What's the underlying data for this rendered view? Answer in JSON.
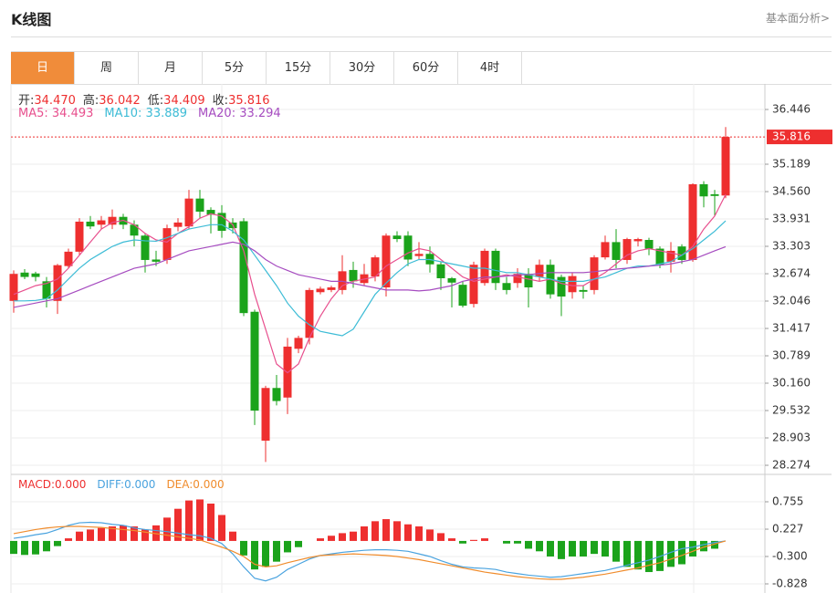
{
  "header": {
    "title": "K线图",
    "link": "基本面分析>"
  },
  "tabs": [
    {
      "label": "日",
      "active": true
    },
    {
      "label": "周",
      "active": false
    },
    {
      "label": "月",
      "active": false
    },
    {
      "label": "5分",
      "active": false
    },
    {
      "label": "15分",
      "active": false
    },
    {
      "label": "30分",
      "active": false
    },
    {
      "label": "60分",
      "active": false
    },
    {
      "label": "4时",
      "active": false
    }
  ],
  "chart_data": [
    {
      "type": "candlestick",
      "info": [
        {
          "name": "开:",
          "value": "34.470"
        },
        {
          "name": "高:",
          "value": "36.042"
        },
        {
          "name": "低:",
          "value": "34.409"
        },
        {
          "name": "收:",
          "value": "35.816"
        }
      ],
      "up_color": "#ee2f2f",
      "down_color": "#1ba31b",
      "open": [
        32.05,
        32.7,
        32.68,
        32.5,
        32.05,
        32.85,
        33.18,
        33.87,
        33.8,
        33.8,
        33.98,
        33.8,
        33.55,
        33.0,
        32.99,
        33.75,
        33.76,
        34.4,
        34.14,
        34.07,
        33.85,
        33.88,
        31.8,
        28.84,
        30.05,
        29.83,
        30.95,
        31.2,
        32.25,
        32.3,
        32.3,
        32.76,
        32.46,
        32.61,
        32.36,
        33.55,
        33.55,
        33.08,
        33.13,
        32.89,
        32.57,
        32.42,
        31.98,
        32.46,
        33.2,
        32.46,
        32.46,
        32.67,
        32.6,
        32.88,
        32.6,
        32.25,
        32.3,
        32.3,
        33.05,
        33.4,
        32.99,
        33.42,
        33.45,
        33.25,
        32.95,
        33.3,
        32.99,
        34.73,
        34.5,
        34.47
      ],
      "high": [
        32.75,
        32.78,
        32.72,
        32.6,
        32.9,
        33.25,
        33.95,
        34.0,
        34.0,
        34.15,
        34.05,
        33.9,
        33.6,
        33.2,
        33.8,
        33.95,
        34.6,
        34.6,
        34.2,
        34.25,
        33.95,
        33.95,
        31.85,
        30.1,
        30.35,
        31.2,
        31.25,
        32.35,
        32.38,
        32.4,
        33.1,
        32.95,
        32.9,
        33.1,
        33.6,
        33.65,
        33.65,
        33.4,
        33.3,
        32.95,
        32.6,
        32.5,
        32.95,
        33.25,
        33.25,
        32.6,
        32.8,
        32.8,
        33.0,
        33.0,
        32.65,
        32.7,
        32.4,
        33.1,
        33.55,
        33.7,
        33.5,
        33.5,
        33.5,
        33.3,
        33.4,
        33.35,
        34.75,
        34.8,
        34.6,
        36.042
      ],
      "low": [
        31.78,
        32.55,
        32.5,
        31.9,
        31.75,
        32.8,
        33.1,
        33.7,
        33.7,
        33.7,
        33.7,
        33.3,
        32.7,
        32.85,
        32.9,
        33.65,
        33.7,
        33.95,
        33.6,
        33.5,
        33.6,
        31.7,
        29.2,
        28.35,
        29.65,
        29.45,
        30.85,
        31.05,
        32.2,
        32.25,
        32.2,
        32.35,
        32.4,
        32.5,
        32.15,
        33.4,
        32.85,
        33.0,
        32.7,
        32.3,
        31.9,
        31.9,
        31.9,
        32.4,
        32.3,
        32.2,
        32.35,
        31.9,
        32.5,
        32.1,
        31.7,
        32.1,
        32.1,
        32.2,
        33.0,
        32.8,
        32.9,
        33.3,
        33.1,
        32.8,
        32.7,
        32.9,
        32.95,
        34.2,
        34.0,
        34.409
      ],
      "close": [
        32.67,
        32.6,
        32.6,
        32.1,
        32.87,
        33.18,
        33.87,
        33.76,
        33.9,
        33.98,
        33.8,
        33.55,
        32.99,
        32.95,
        33.72,
        33.85,
        34.4,
        34.1,
        34.03,
        33.66,
        33.72,
        31.77,
        29.53,
        30.05,
        29.75,
        31.0,
        31.2,
        32.3,
        32.33,
        32.36,
        32.73,
        32.5,
        32.66,
        33.05,
        33.55,
        33.47,
        33.0,
        33.13,
        32.89,
        32.57,
        32.47,
        31.94,
        32.88,
        33.2,
        32.46,
        32.3,
        32.67,
        32.36,
        32.88,
        32.2,
        32.15,
        32.62,
        32.26,
        33.05,
        33.4,
        32.99,
        33.47,
        33.47,
        33.25,
        32.88,
        33.2,
        32.99,
        34.73,
        34.45,
        34.46,
        35.816
      ],
      "series": [
        {
          "label": "MA5: 34.493",
          "color": "#e8508e",
          "values": [
            32.2,
            32.3,
            32.4,
            32.45,
            32.55,
            32.8,
            33.1,
            33.4,
            33.7,
            33.85,
            33.9,
            33.8,
            33.6,
            33.45,
            33.4,
            33.6,
            33.75,
            33.95,
            34.05,
            34.0,
            33.8,
            33.2,
            32.2,
            31.4,
            30.6,
            30.4,
            30.6,
            31.2,
            31.7,
            32.1,
            32.4,
            32.5,
            32.55,
            32.6,
            32.85,
            33.0,
            33.15,
            33.25,
            33.2,
            33.0,
            32.8,
            32.6,
            32.5,
            32.55,
            32.6,
            32.65,
            32.6,
            32.55,
            32.5,
            32.55,
            32.45,
            32.4,
            32.4,
            32.55,
            32.7,
            32.9,
            33.1,
            33.2,
            33.25,
            33.2,
            33.15,
            33.1,
            33.3,
            33.7,
            34.0,
            34.493
          ]
        },
        {
          "label": "MA10: 33.889",
          "color": "#3dbcd6",
          "values": [
            32.05,
            32.05,
            32.06,
            32.1,
            32.3,
            32.55,
            32.8,
            33.0,
            33.15,
            33.3,
            33.4,
            33.45,
            33.43,
            33.42,
            33.5,
            33.6,
            33.7,
            33.75,
            33.8,
            33.8,
            33.65,
            33.45,
            33.1,
            32.75,
            32.4,
            32.0,
            31.7,
            31.5,
            31.35,
            31.3,
            31.25,
            31.4,
            31.8,
            32.2,
            32.46,
            32.7,
            32.9,
            33.0,
            33.0,
            32.95,
            32.9,
            32.85,
            32.8,
            32.8,
            32.75,
            32.7,
            32.7,
            32.65,
            32.6,
            32.55,
            32.5,
            32.5,
            32.5,
            32.55,
            32.6,
            32.7,
            32.8,
            32.85,
            32.85,
            32.9,
            32.95,
            33.1,
            33.25,
            33.45,
            33.65,
            33.889
          ]
        },
        {
          "label": "MA20: 33.294",
          "color": "#a64cc0",
          "values": [
            31.9,
            31.95,
            32.0,
            32.05,
            32.1,
            32.2,
            32.3,
            32.4,
            32.5,
            32.6,
            32.7,
            32.8,
            32.85,
            32.9,
            33.0,
            33.1,
            33.2,
            33.25,
            33.3,
            33.35,
            33.4,
            33.35,
            33.2,
            33.0,
            32.85,
            32.75,
            32.65,
            32.6,
            32.55,
            32.5,
            32.5,
            32.45,
            32.4,
            32.35,
            32.3,
            32.3,
            32.3,
            32.28,
            32.3,
            32.35,
            32.4,
            32.5,
            32.55,
            32.6,
            32.6,
            32.62,
            32.65,
            32.65,
            32.68,
            32.7,
            32.7,
            32.7,
            32.7,
            32.72,
            32.75,
            32.78,
            32.8,
            32.82,
            32.85,
            32.87,
            32.9,
            32.95,
            33.0,
            33.1,
            33.2,
            33.294
          ]
        }
      ],
      "last_price": {
        "value": 35.816,
        "color": "#ee2f2f"
      },
      "ylim": [
        28.065,
        37.033
      ],
      "yticks": [
        36.446,
        35.189,
        {
          "value": 34.56,
          "label": "34.560"
        },
        33.931,
        33.303,
        32.674,
        32.046,
        31.417,
        30.789,
        {
          "value": 30.16,
          "label": "30.160"
        },
        29.532,
        28.903,
        28.274
      ],
      "grid": true
    },
    {
      "type": "macd",
      "histogram": {
        "label": "MACD:0.000",
        "color": "#ee2f2f",
        "down_color": "#1ba31b",
        "values": [
          -0.25,
          -0.27,
          -0.26,
          -0.2,
          -0.1,
          0.05,
          0.18,
          0.22,
          0.25,
          0.28,
          0.3,
          0.28,
          0.22,
          0.3,
          0.45,
          0.62,
          0.78,
          0.8,
          0.72,
          0.5,
          0.18,
          -0.28,
          -0.55,
          -0.5,
          -0.4,
          -0.22,
          -0.12,
          0.0,
          0.05,
          0.1,
          0.15,
          0.18,
          0.28,
          0.38,
          0.42,
          0.38,
          0.32,
          0.28,
          0.22,
          0.15,
          0.05,
          -0.05,
          0.02,
          0.05,
          0.0,
          -0.05,
          -0.05,
          -0.15,
          -0.2,
          -0.3,
          -0.35,
          -0.3,
          -0.3,
          -0.25,
          -0.3,
          -0.4,
          -0.5,
          -0.55,
          -0.6,
          -0.58,
          -0.5,
          -0.45,
          -0.3,
          -0.2,
          -0.15,
          0.0
        ]
      },
      "series": [
        {
          "label": "DIFF:0.000",
          "color": "#4aa3df",
          "values": [
            0.05,
            0.08,
            0.12,
            0.15,
            0.22,
            0.3,
            0.35,
            0.36,
            0.35,
            0.32,
            0.3,
            0.25,
            0.22,
            0.2,
            0.18,
            0.15,
            0.12,
            0.1,
            0.05,
            -0.05,
            -0.25,
            -0.5,
            -0.72,
            -0.77,
            -0.7,
            -0.55,
            -0.45,
            -0.35,
            -0.28,
            -0.25,
            -0.22,
            -0.2,
            -0.18,
            -0.17,
            -0.17,
            -0.18,
            -0.2,
            -0.25,
            -0.3,
            -0.38,
            -0.45,
            -0.5,
            -0.52,
            -0.53,
            -0.55,
            -0.6,
            -0.63,
            -0.66,
            -0.68,
            -0.7,
            -0.69,
            -0.66,
            -0.63,
            -0.6,
            -0.57,
            -0.52,
            -0.47,
            -0.42,
            -0.37,
            -0.3,
            -0.22,
            -0.15,
            -0.12,
            -0.07,
            -0.03,
            0.0
          ]
        },
        {
          "label": "DEA:0.000",
          "color": "#f08c2c",
          "values": [
            0.14,
            0.18,
            0.22,
            0.25,
            0.27,
            0.28,
            0.28,
            0.27,
            0.26,
            0.24,
            0.22,
            0.2,
            0.17,
            0.14,
            0.11,
            0.08,
            0.05,
            0.02,
            -0.05,
            -0.12,
            -0.2,
            -0.3,
            -0.45,
            -0.5,
            -0.48,
            -0.42,
            -0.37,
            -0.32,
            -0.28,
            -0.27,
            -0.26,
            -0.25,
            -0.26,
            -0.27,
            -0.28,
            -0.3,
            -0.33,
            -0.36,
            -0.4,
            -0.44,
            -0.48,
            -0.52,
            -0.56,
            -0.6,
            -0.63,
            -0.66,
            -0.69,
            -0.71,
            -0.73,
            -0.74,
            -0.74,
            -0.72,
            -0.7,
            -0.67,
            -0.64,
            -0.6,
            -0.56,
            -0.52,
            -0.47,
            -0.42,
            -0.35,
            -0.28,
            -0.2,
            -0.12,
            -0.06,
            0.0
          ]
        }
      ],
      "ylim": [
        -1.004,
        1.283
      ],
      "yticks": [
        0.755,
        0.227,
        {
          "value": -0.3,
          "label": "-0.300"
        },
        -0.828
      ],
      "grid": true
    }
  ]
}
